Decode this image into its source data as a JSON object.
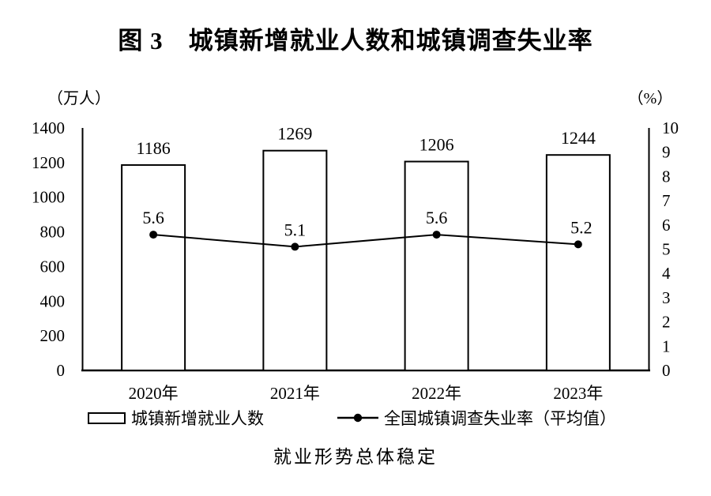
{
  "title": "图 3　城镇新增就业人数和城镇调查失业率",
  "caption": "就业形势总体稳定",
  "colors": {
    "ink": "#000000",
    "background": "#ffffff"
  },
  "legend": {
    "bar_label": "城镇新增就业人数",
    "line_label": "全国城镇调查失业率（平均值）"
  },
  "chart_data": {
    "type": "bar",
    "title": "图 3　城镇新增就业人数和城镇调查失业率",
    "categories": [
      "2020年",
      "2021年",
      "2022年",
      "2023年"
    ],
    "series": [
      {
        "name": "城镇新增就业人数",
        "type": "bar",
        "axis": "left",
        "values": [
          1186,
          1269,
          1206,
          1244
        ],
        "labels": [
          "1186",
          "1269",
          "1206",
          "1244"
        ]
      },
      {
        "name": "全国城镇调查失业率（平均值）",
        "type": "line",
        "axis": "right",
        "values": [
          5.6,
          5.1,
          5.6,
          5.2
        ],
        "labels": [
          "5.6",
          "5.1",
          "5.6",
          "5.2"
        ]
      }
    ],
    "left_axis": {
      "unit": "（万人）",
      "min": 0,
      "max": 1400,
      "step": 200
    },
    "right_axis": {
      "unit": "（%）",
      "min": 0,
      "max": 10,
      "step": 1
    },
    "grid": false,
    "legend_position": "bottom",
    "caption": "就业形势总体稳定"
  }
}
